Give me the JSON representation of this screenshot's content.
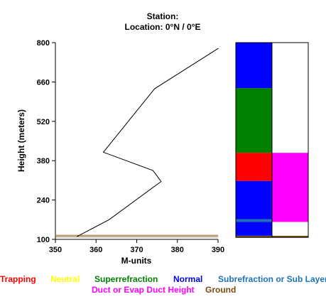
{
  "header": {
    "station": "Station:",
    "location": "Location:   0°N /   0°E"
  },
  "chart_data": {
    "type": "line",
    "xlabel": "M-units",
    "ylabel": "Height (meters)",
    "xlim": [
      350,
      390
    ],
    "ylim": [
      100,
      800
    ],
    "xticks": [
      "350",
      "360",
      "370",
      "380",
      "390"
    ],
    "yticks": [
      "100",
      "240",
      "380",
      "520",
      "660",
      "800"
    ],
    "series": [
      {
        "color": "#000000",
        "x": [
          355.3,
          363.2,
          376.0,
          374.0,
          361.8,
          374.4,
          390.1
        ],
        "y": [
          110,
          170,
          306,
          345,
          410,
          636,
          780
        ]
      }
    ],
    "ground_line": {
      "y": 112,
      "color": "#8b5a1e"
    },
    "ducting_panel": {
      "left_column": [
        {
          "from": 107,
          "to": 113,
          "layer": "Ground"
        },
        {
          "from": 113,
          "to": 162,
          "layer": "Normal"
        },
        {
          "from": 162,
          "to": 172,
          "layer": "Subrefraction or Sub Layer"
        },
        {
          "from": 172,
          "to": 308,
          "layer": "Normal"
        },
        {
          "from": 308,
          "to": 408,
          "layer": "Trapping"
        },
        {
          "from": 408,
          "to": 638,
          "layer": "Superrefraction"
        },
        {
          "from": 638,
          "to": 800,
          "layer": "Normal"
        }
      ],
      "right_column": [
        {
          "from": 107,
          "to": 113,
          "layer": "Ground"
        },
        {
          "from": 113,
          "to": 162,
          "layer": "None"
        },
        {
          "from": 162,
          "to": 408,
          "layer": "Duct or Evap Duct Height"
        },
        {
          "from": 408,
          "to": 800,
          "layer": "None"
        }
      ]
    }
  },
  "legend": [
    {
      "label": "Trapping",
      "color": "#ff0000"
    },
    {
      "label": "Neutral",
      "color": "#ffff00"
    },
    {
      "label": "Superrefraction",
      "color": "#008000"
    },
    {
      "label": "Normal",
      "color": "#0000ff"
    },
    {
      "label": "Subrefraction or Sub Layer",
      "color": "#1e72b4"
    },
    {
      "label": "Duct or Evap Duct Height",
      "color": "#ff00ff"
    },
    {
      "label": "Ground",
      "color": "#7b4a12"
    }
  ],
  "layer_colors": {
    "Trapping": "#ff0000",
    "Superrefraction": "#008000",
    "Normal": "#0000ff",
    "Subrefraction or Sub Layer": "#1e72b4",
    "Duct or Evap Duct Height": "#ff00ff",
    "Ground": "#7b4a12",
    "None": "#ffffff"
  }
}
